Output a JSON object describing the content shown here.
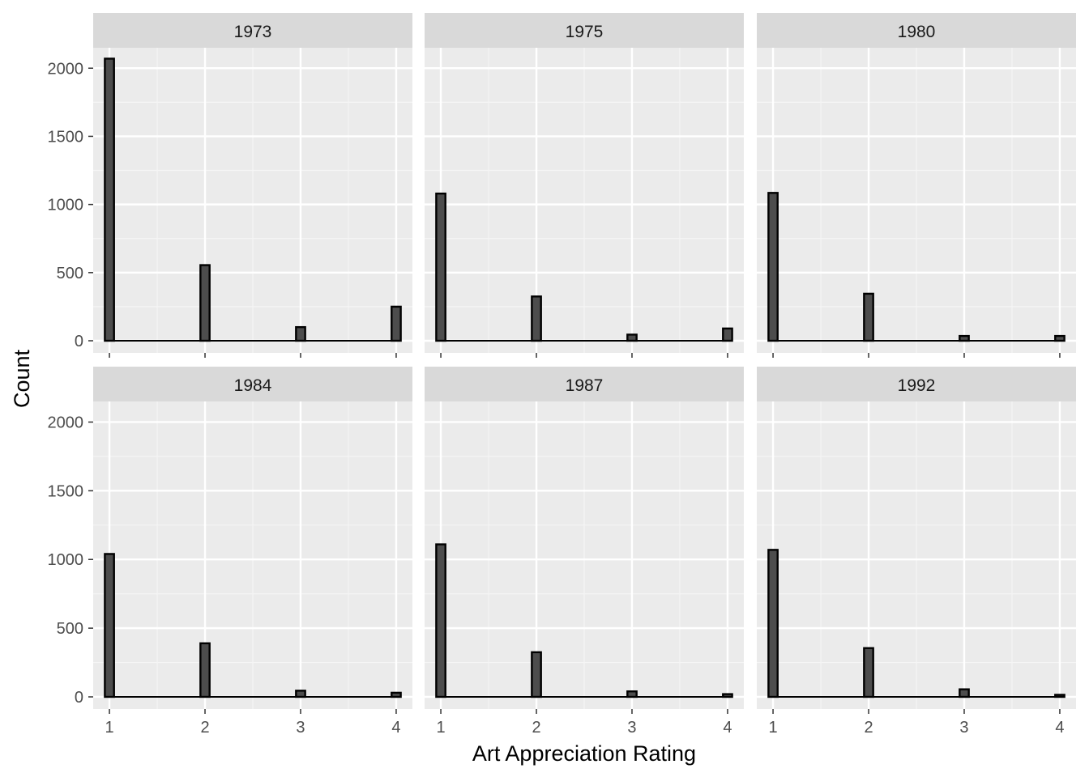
{
  "chart_data": {
    "type": "bar",
    "facet_by": "year",
    "xlabel": "Art Appreciation Rating",
    "ylabel": "Count",
    "x_ticks": [
      1,
      2,
      3,
      4
    ],
    "y_ticks": [
      0,
      500,
      1000,
      1500,
      2000
    ],
    "ylim": [
      0,
      2150
    ],
    "xlim": [
      0.83,
      4.17
    ],
    "grid": true,
    "colors": {
      "bar_fill": "#4d4d4d",
      "bar_stroke": "#000000",
      "panel_bg": "#ebebeb",
      "strip_bg": "#d9d9d9"
    },
    "panels": [
      {
        "title": "1973",
        "x": [
          1,
          2,
          3,
          4
        ],
        "values": [
          2070,
          555,
          100,
          250
        ]
      },
      {
        "title": "1975",
        "x": [
          1,
          2,
          3,
          4
        ],
        "values": [
          1080,
          325,
          45,
          90
        ]
      },
      {
        "title": "1980",
        "x": [
          1,
          2,
          3,
          4
        ],
        "values": [
          1085,
          345,
          35,
          35
        ]
      },
      {
        "title": "1984",
        "x": [
          1,
          2,
          3,
          4
        ],
        "values": [
          1040,
          390,
          45,
          30
        ]
      },
      {
        "title": "1987",
        "x": [
          1,
          2,
          3,
          4
        ],
        "values": [
          1110,
          325,
          40,
          20
        ]
      },
      {
        "title": "1992",
        "x": [
          1,
          2,
          3,
          4
        ],
        "values": [
          1070,
          355,
          55,
          15
        ]
      }
    ]
  }
}
